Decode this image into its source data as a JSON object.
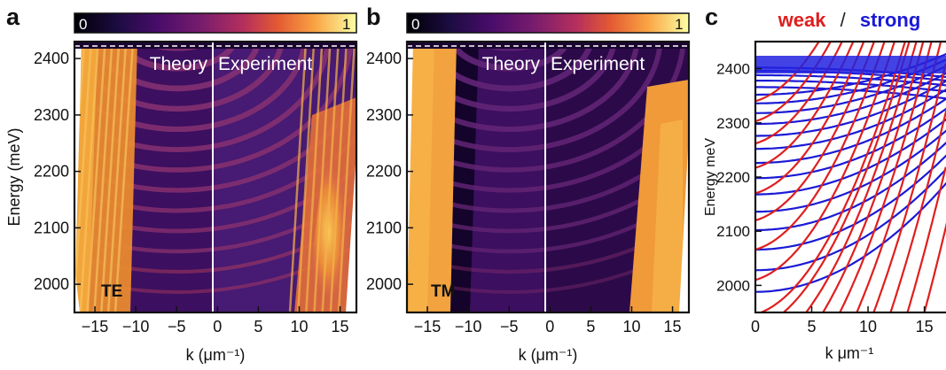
{
  "chart_data": [
    {
      "panel": "a",
      "type": "heatmap",
      "colorbar": {
        "min_label": "0",
        "max_label": "1",
        "colormap": "inferno"
      },
      "xlabel": "k (μm⁻¹)",
      "ylabel": "Energy (meV)",
      "xlim": [
        -17.5,
        17
      ],
      "ylim": [
        1950,
        2430
      ],
      "xticks": [
        "-15",
        "-10",
        "-5",
        "0",
        "5",
        "10",
        "15"
      ],
      "yticks": [
        "2000",
        "2100",
        "2200",
        "2300",
        "2400"
      ],
      "left_label": "Theory",
      "right_label": "Experiment",
      "polarization_label": "TE"
    },
    {
      "panel": "b",
      "type": "heatmap",
      "colorbar": {
        "min_label": "0",
        "max_label": "1",
        "colormap": "inferno"
      },
      "xlabel": "k (μm⁻¹)",
      "ylabel": "",
      "xlim": [
        -17.5,
        17
      ],
      "ylim": [
        1950,
        2430
      ],
      "xticks": [
        "-15",
        "-10",
        "-5",
        "0",
        "5",
        "10",
        "15"
      ],
      "yticks": [
        "2000",
        "2100",
        "2200",
        "2300",
        "2400"
      ],
      "left_label": "Theory",
      "right_label": "Experiment",
      "polarization_label": "TM"
    },
    {
      "panel": "c",
      "type": "line",
      "title_parts": [
        "weak",
        "/",
        "strong"
      ],
      "title_colors": [
        "#e01e1e",
        "#222222",
        "#1a1ad6"
      ],
      "xlabel": "k  μm⁻¹",
      "ylabel": "Energy  meV",
      "xlim": [
        0,
        17
      ],
      "ylim": [
        1950,
        2450
      ],
      "xticks": [
        "0",
        "5",
        "10",
        "15"
      ],
      "yticks": [
        "2000",
        "2100",
        "2200",
        "2300",
        "2400"
      ],
      "series": [
        {
          "group": "strong",
          "color": "#1a1ad6",
          "e0": [
            2402,
            2396,
            2388,
            2378,
            2366,
            2352,
            2336,
            2318,
            2298,
            2276,
            2252,
            2226,
            2198,
            2168,
            2136,
            2102,
            2066,
            2028,
            1988
          ]
        },
        {
          "group": "weak",
          "color": "#e01e1e",
          "e0": [
            2340,
            2303,
            2262,
            2217,
            2170,
            2120,
            2066,
            2010,
            1950
          ],
          "k0": [
            0,
            0,
            0,
            0,
            0,
            0,
            0,
            0,
            0.5,
            2.5,
            4.5,
            6.0,
            7.5,
            9.0,
            10.5,
            12.0,
            13.5,
            15.0
          ]
        }
      ]
    }
  ],
  "panel_letters": [
    "a",
    "b",
    "c"
  ]
}
